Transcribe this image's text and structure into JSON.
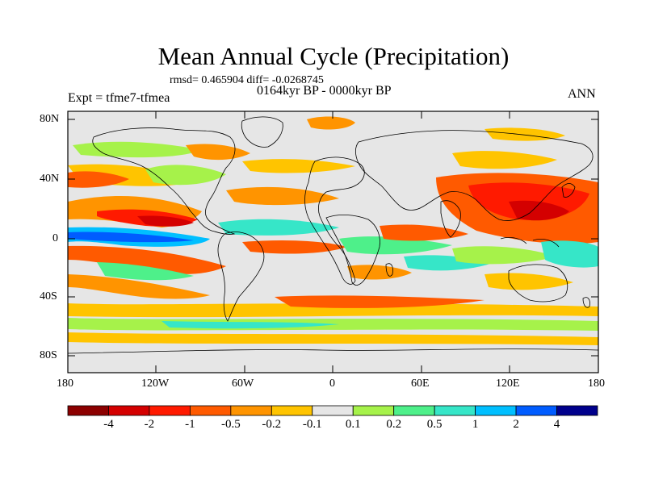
{
  "title": "Mean Annual Cycle (Precipitation)",
  "stats": "rmsd= 0.465904  diff= -0.0268745",
  "period": "0164kyr BP - 0000kyr BP",
  "experiment": "Expt = tfme7-tfmea",
  "season": "ANN",
  "lat_ticks": [
    "80N",
    "40N",
    "0",
    "40S",
    "80S"
  ],
  "lon_ticks": [
    "180",
    "120W",
    "60W",
    "0",
    "60E",
    "120E",
    "180"
  ],
  "colorbar": {
    "labels": [
      "-4",
      "-2",
      "-1",
      "-0.5",
      "-0.2",
      "-0.1",
      "0.1",
      "0.2",
      "0.5",
      "1",
      "2",
      "4"
    ],
    "colors": [
      "#8c0000",
      "#d40000",
      "#ff1a00",
      "#ff5a00",
      "#ff9400",
      "#ffc400",
      "#e6e6e6",
      "#a6f24a",
      "#4ef08a",
      "#36e6c8",
      "#00bfff",
      "#005cff",
      "#00008c"
    ]
  },
  "chart_data": {
    "type": "heatmap",
    "title": "Mean Annual Cycle (Precipitation)",
    "xlabel": "",
    "ylabel": "",
    "x_ticks": [
      "180",
      "120W",
      "60W",
      "0",
      "60E",
      "120E",
      "180"
    ],
    "y_ticks": [
      "80N",
      "40N",
      "0",
      "40S",
      "80S"
    ],
    "xlim": [
      -180,
      180
    ],
    "ylim": [
      -90,
      90
    ],
    "levels": [
      -4,
      -2,
      -1,
      -0.5,
      -0.2,
      -0.1,
      0.1,
      0.2,
      0.5,
      1,
      2,
      4
    ],
    "map_background": "#e6e6e6"
  }
}
